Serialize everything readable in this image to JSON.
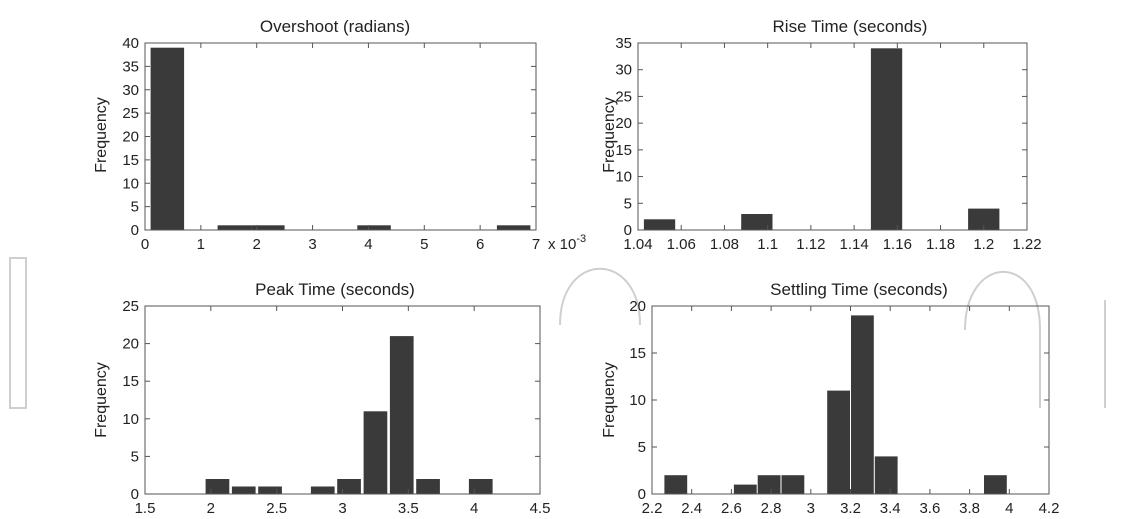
{
  "colors": {
    "bar": "#3a3a3a",
    "axis": "#555555",
    "watermark": "#cfcfcf",
    "text": "#222222"
  },
  "chart_data": [
    {
      "type": "bar",
      "title": "Overshoot (radians)",
      "xlabel": "",
      "ylabel": "Frequency",
      "x_multiplier": "x 10",
      "x_multiplier_exp": "-3",
      "xlim": [
        0,
        7
      ],
      "ylim": [
        0,
        40
      ],
      "xticks": [
        "0",
        "1",
        "2",
        "3",
        "4",
        "5",
        "6",
        "7"
      ],
      "yticks": [
        "0",
        "5",
        "10",
        "15",
        "20",
        "25",
        "30",
        "35",
        "40"
      ],
      "bin_width": 0.6,
      "x": [
        0.4,
        1.6,
        2.2,
        4.1,
        6.6
      ],
      "values": [
        39,
        1,
        1,
        1,
        1
      ]
    },
    {
      "type": "bar",
      "title": "Rise Time (seconds)",
      "xlabel": "",
      "ylabel": "Frequency",
      "xlim": [
        1.04,
        1.22
      ],
      "ylim": [
        0,
        35
      ],
      "xticks": [
        "1.04",
        "1.06",
        "1.08",
        "1.1",
        "1.12",
        "1.14",
        "1.16",
        "1.18",
        "1.2",
        "1.22"
      ],
      "yticks": [
        "0",
        "5",
        "10",
        "15",
        "20",
        "25",
        "30",
        "35"
      ],
      "bin_width": 0.0145,
      "x": [
        1.05,
        1.095,
        1.155,
        1.2
      ],
      "values": [
        2,
        3,
        34,
        4
      ]
    },
    {
      "type": "bar",
      "title": "Peak Time (seconds)",
      "xlabel": "",
      "ylabel": "Frequency",
      "xlim": [
        1.5,
        4.5
      ],
      "ylim": [
        0,
        25
      ],
      "xticks": [
        "1.5",
        "2",
        "2.5",
        "3",
        "3.5",
        "4",
        "4.5"
      ],
      "yticks": [
        "0",
        "5",
        "10",
        "15",
        "20",
        "25"
      ],
      "bin_width": 0.18,
      "x": [
        2.05,
        2.25,
        2.45,
        2.85,
        3.05,
        3.25,
        3.45,
        3.65,
        4.05
      ],
      "values": [
        2,
        1,
        1,
        1,
        2,
        11,
        21,
        2,
        2
      ]
    },
    {
      "type": "bar",
      "title": "Settling Time (seconds)",
      "xlabel": "",
      "ylabel": "Frequency",
      "xlim": [
        2.2,
        4.2
      ],
      "ylim": [
        0,
        20
      ],
      "xticks": [
        "2.2",
        "2.4",
        "2.6",
        "2.8",
        "3",
        "3.2",
        "3.4",
        "3.6",
        "3.8",
        "4",
        "4.2"
      ],
      "yticks": [
        "0",
        "5",
        "10",
        "15",
        "20"
      ],
      "bin_width": 0.115,
      "x": [
        2.32,
        2.67,
        2.79,
        2.91,
        3.14,
        3.26,
        3.38,
        3.93
      ],
      "values": [
        2,
        1,
        2,
        2,
        11,
        19,
        4,
        2
      ]
    }
  ]
}
